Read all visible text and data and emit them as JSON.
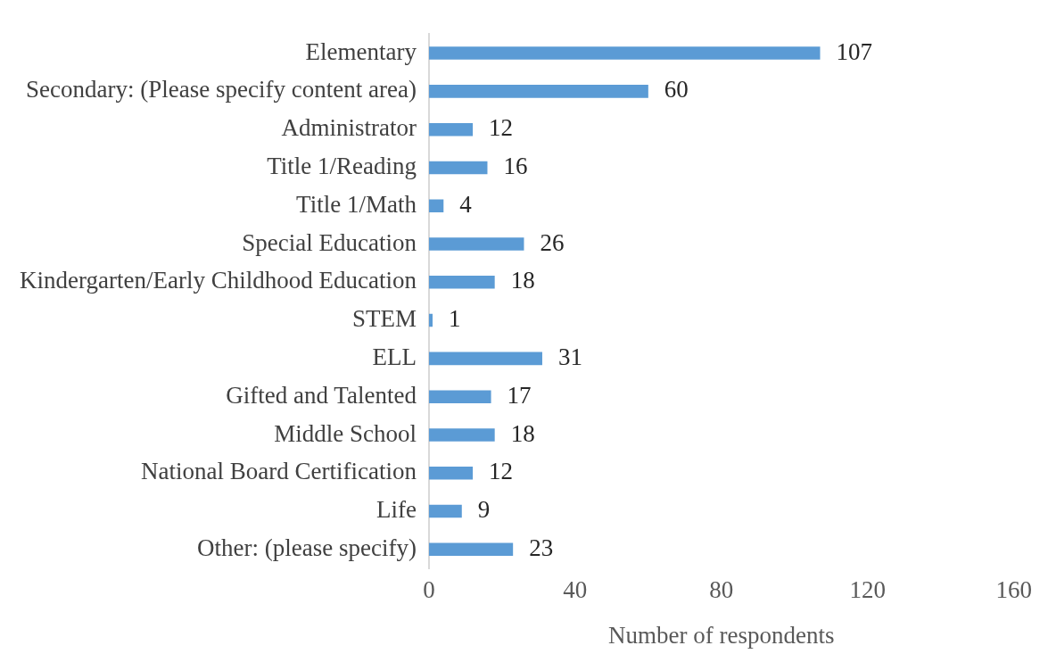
{
  "chart_data": {
    "type": "bar",
    "orientation": "horizontal",
    "categories": [
      "Elementary",
      "Secondary: (Please specify content area)",
      "Administrator",
      "Title 1/Reading",
      "Title 1/Math",
      "Special Education",
      "Kindergarten/Early Childhood Education",
      "STEM",
      "ELL",
      "Gifted and Talented",
      "Middle School",
      "National Board Certification",
      "Life",
      "Other: (please specify)"
    ],
    "values": [
      107,
      60,
      12,
      16,
      4,
      26,
      18,
      1,
      31,
      17,
      18,
      12,
      9,
      23
    ],
    "color": "#5b9bd5",
    "xlim": [
      0,
      160
    ],
    "xticks": [
      0,
      40,
      80,
      120,
      160
    ],
    "xlabel": "Number of respondents",
    "data_labels": true,
    "grid": false,
    "legend": false
  }
}
